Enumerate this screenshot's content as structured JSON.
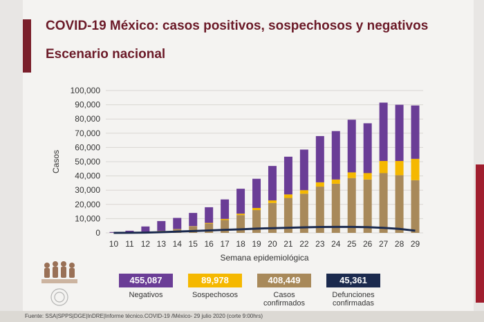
{
  "slide": {
    "title": "COVID-19 México: casos positivos, sospechosos y negativos",
    "subtitle": "Escenario nacional",
    "footer": "Fuente: SSA|SPPS|DGE|InDRE|Informe técnico.COVID-19 /México- 29 julio 2020 (corte 9:00hrs)"
  },
  "colors": {
    "negativos": "#6a3d96",
    "sospechosos": "#f5b800",
    "confirmados": "#a8895a",
    "defunciones": "#1b2a4e"
  },
  "legend": [
    {
      "value": "455,087",
      "label": "Negativos",
      "color_key": "negativos"
    },
    {
      "value": "89,978",
      "label": "Sospechosos",
      "color_key": "sospechosos"
    },
    {
      "value": "408,449",
      "label": "Casos\nconfirmados",
      "color_key": "confirmados"
    },
    {
      "value": "45,361",
      "label": "Defunciones\nconfirmadas",
      "color_key": "defunciones"
    }
  ],
  "chart_data": {
    "type": "bar",
    "stacked": true,
    "title": "",
    "xlabel": "Semana epidemiológica",
    "ylabel": "Casos",
    "ylim": [
      0,
      100000
    ],
    "yticks": [
      0,
      10000,
      20000,
      30000,
      40000,
      50000,
      60000,
      70000,
      80000,
      90000,
      100000
    ],
    "ytick_labels": [
      "0",
      "10,000",
      "20,000",
      "30,000",
      "40,000",
      "50,000",
      "60,000",
      "70,000",
      "80,000",
      "90,000",
      "100,000"
    ],
    "categories": [
      "10",
      "11",
      "12",
      "13",
      "14",
      "15",
      "16",
      "17",
      "18",
      "19",
      "20",
      "21",
      "22",
      "23",
      "24",
      "25",
      "26",
      "27",
      "28",
      "29"
    ],
    "series": [
      {
        "name": "Casos confirmados",
        "color_key": "confirmados",
        "values": [
          100,
          300,
          800,
          1500,
          2800,
          4500,
          6500,
          9000,
          12500,
          16000,
          21000,
          24500,
          27500,
          32500,
          34500,
          38500,
          37500,
          42000,
          40500,
          37000
        ]
      },
      {
        "name": "Sospechosos",
        "color_key": "sospechosos",
        "values": [
          0,
          0,
          0,
          0,
          0,
          200,
          500,
          800,
          1000,
          1500,
          1800,
          2500,
          2500,
          3000,
          3000,
          4000,
          4500,
          8500,
          10000,
          15000
        ]
      },
      {
        "name": "Negativos",
        "color_key": "negativos",
        "values": [
          500,
          1200,
          3700,
          6800,
          7700,
          9300,
          11000,
          13700,
          17500,
          20500,
          24200,
          26500,
          28500,
          32500,
          34000,
          37000,
          35000,
          41000,
          39500,
          37500
        ]
      }
    ],
    "line": {
      "name": "Defunciones confirmadas",
      "color_key": "defunciones",
      "values": [
        0,
        50,
        200,
        500,
        900,
        1300,
        1700,
        2100,
        2500,
        3000,
        3300,
        3600,
        3900,
        4100,
        4200,
        4200,
        4000,
        3500,
        2800,
        1500
      ]
    }
  }
}
